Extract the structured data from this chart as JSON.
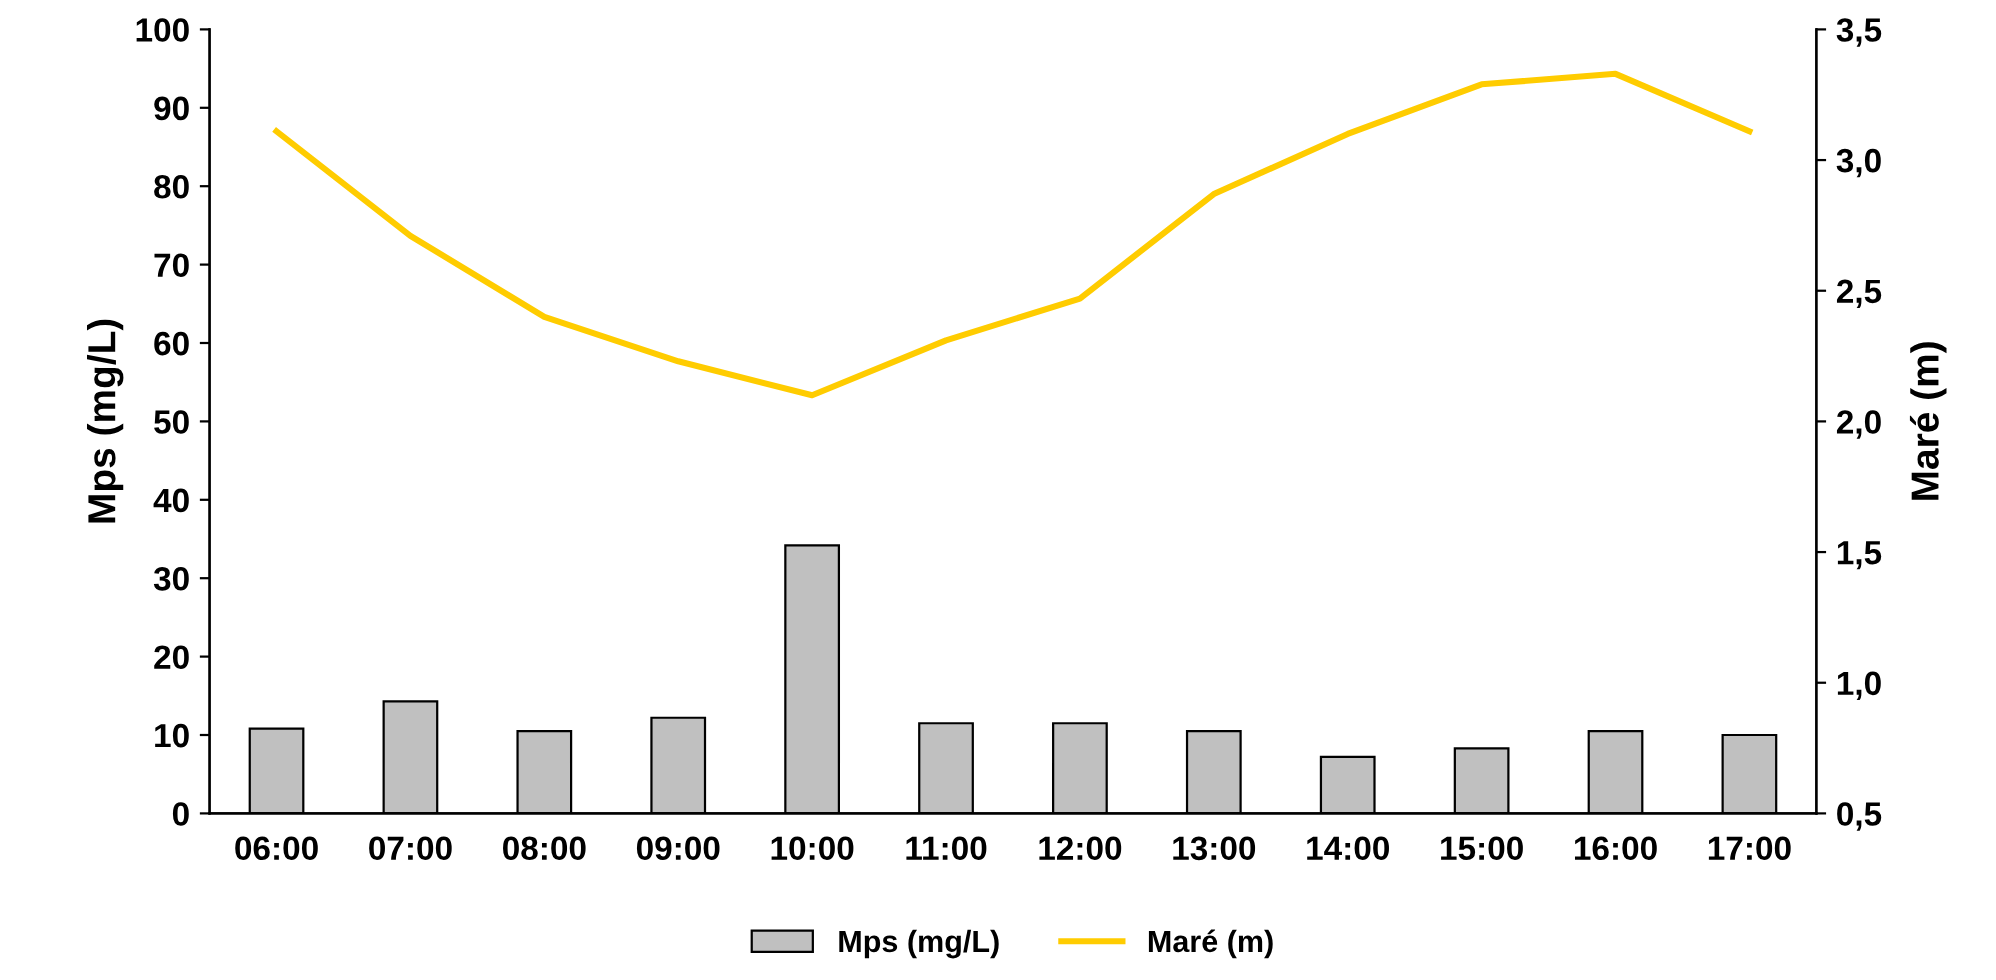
{
  "chart_data": {
    "type": "bar",
    "categories": [
      "06:00",
      "07:00",
      "08:00",
      "09:00",
      "10:00",
      "11:00",
      "12:00",
      "13:00",
      "14:00",
      "15:00",
      "16:00",
      "17:00"
    ],
    "ylabel": "Mps (mg/L)",
    "y2label": "Maré (m)",
    "series": [
      {
        "name": "Mps (mg/L)",
        "color": "#c0c0c0",
        "values": [
          10.8,
          14.3,
          10.5,
          12.2,
          34.2,
          11.5,
          11.5,
          10.5,
          7.2,
          8.3,
          10.5,
          10.0
        ]
      },
      {
        "name": "Maré (m)",
        "type": "line",
        "axis": "y2",
        "color": "#ffcc00",
        "values": [
          3.11,
          2.71,
          2.4,
          2.23,
          2.1,
          2.31,
          2.47,
          2.87,
          3.1,
          3.29,
          3.33,
          3.11
        ]
      }
    ],
    "ylim": [
      0,
      100
    ],
    "yticks": [
      0,
      10,
      20,
      30,
      40,
      50,
      60,
      70,
      80,
      90,
      100
    ],
    "y2lim": [
      0.5,
      3.5
    ],
    "y2ticks": [
      {
        "value": 0.5,
        "label": "0,5"
      },
      {
        "value": 1.0,
        "label": "1,0"
      },
      {
        "value": 1.5,
        "label": "1,5"
      },
      {
        "value": 2.0,
        "label": "2,0"
      },
      {
        "value": 2.5,
        "label": "2,5"
      },
      {
        "value": 3.0,
        "label": "3,0"
      },
      {
        "value": 3.5,
        "label": "3,5"
      }
    ],
    "legend": "bottom",
    "grid": false
  }
}
